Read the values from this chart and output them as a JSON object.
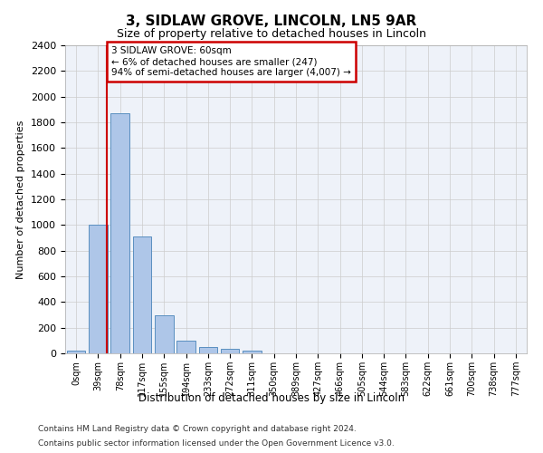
{
  "title_line1": "3, SIDLAW GROVE, LINCOLN, LN5 9AR",
  "title_line2": "Size of property relative to detached houses in Lincoln",
  "xlabel": "Distribution of detached houses by size in Lincoln",
  "ylabel": "Number of detached properties",
  "bin_labels": [
    "0sqm",
    "39sqm",
    "78sqm",
    "117sqm",
    "155sqm",
    "194sqm",
    "233sqm",
    "272sqm",
    "311sqm",
    "350sqm",
    "389sqm",
    "427sqm",
    "466sqm",
    "505sqm",
    "544sqm",
    "583sqm",
    "622sqm",
    "661sqm",
    "700sqm",
    "738sqm",
    "777sqm"
  ],
  "bar_values": [
    20,
    1000,
    1870,
    910,
    300,
    100,
    50,
    35,
    20,
    0,
    0,
    0,
    0,
    0,
    0,
    0,
    0,
    0,
    0,
    0,
    0
  ],
  "bar_color": "#aec6e8",
  "bar_edgecolor": "#5a8fc0",
  "vline_x": 1.4,
  "vline_color": "#cc0000",
  "annotation_text": "3 SIDLAW GROVE: 60sqm\n← 6% of detached houses are smaller (247)\n94% of semi-detached houses are larger (4,007) →",
  "annotation_box_color": "#ffffff",
  "annotation_box_edgecolor": "#cc0000",
  "ylim": [
    0,
    2400
  ],
  "yticks": [
    0,
    200,
    400,
    600,
    800,
    1000,
    1200,
    1400,
    1600,
    1800,
    2000,
    2200,
    2400
  ],
  "footer_line1": "Contains HM Land Registry data © Crown copyright and database right 2024.",
  "footer_line2": "Contains public sector information licensed under the Open Government Licence v3.0.",
  "plot_bg_color": "#eef2f9"
}
